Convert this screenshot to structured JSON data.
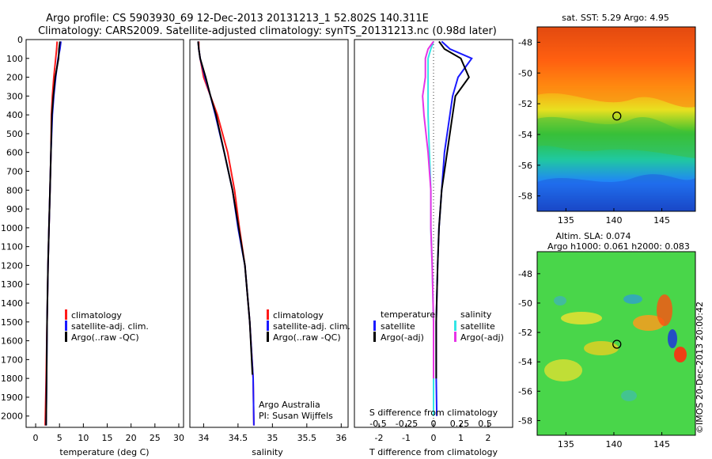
{
  "header": {
    "title_line1": "Argo profile: CS 5903930_69 12-Dec-2013 20131213_1 52.802S 140.311E",
    "title_line2": "Climatology: CARS2009. Satellite-adjusted climatology: synTS_20131213.nc (0.98d later)"
  },
  "colors": {
    "climatology": "#ff1a1a",
    "satellite": "#1a1aff",
    "argo": "#000000",
    "sat_salinity": "#33e6e6",
    "argo_salinity_diff": "#e633e6"
  },
  "depth_axis": {
    "ticks": [
      0,
      100,
      200,
      300,
      400,
      500,
      600,
      700,
      800,
      900,
      1000,
      1100,
      1200,
      1300,
      1400,
      1500,
      1600,
      1700,
      1800,
      1900,
      2000
    ],
    "lim": [
      0,
      2060
    ]
  },
  "temperature_panel": {
    "xlabel": "temperature (deg C)",
    "xticks": [
      0,
      5,
      10,
      15,
      20,
      25,
      30
    ],
    "xlim": [
      -2,
      31
    ],
    "legend": [
      "climatology",
      "satellite-adj. clim.",
      "Argo(..raw -QC)"
    ]
  },
  "salinity_panel": {
    "xlabel": "salinity",
    "xticks": [
      "34",
      "34.5",
      "35",
      "35.5",
      "36"
    ],
    "xtick_values": [
      34,
      34.5,
      35,
      35.5,
      36
    ],
    "xlim": [
      33.8,
      36.1
    ],
    "legend": [
      "climatology",
      "satellite-adj. clim.",
      "Argo(..raw -QC)"
    ],
    "credit_line1": "Argo Australia",
    "credit_line2": "PI: Susan Wijffels"
  },
  "difference_panel": {
    "xlabel": "T difference from climatology",
    "toplabel": "S difference from climatology",
    "t_ticks": [
      "-2",
      "-1",
      "0",
      "1",
      "2"
    ],
    "t_tick_values": [
      -2,
      -1,
      0,
      1,
      2
    ],
    "t_lim": [
      -2.9,
      2.9
    ],
    "s_ticks": [
      "-0.5",
      "-0.25",
      "0",
      "0.25",
      "0.5"
    ],
    "legend_temp_title": "temperature",
    "legend_temp": [
      "satellite",
      "Argo(-adj)"
    ],
    "legend_sal_title": "salinity",
    "legend_sal": [
      "satellite",
      "Argo(-adj)"
    ]
  },
  "sst_map": {
    "title": "sat. SST: 5.29 Argo: 4.95",
    "yticks": [
      "-48",
      "-50",
      "-52",
      "-54",
      "-56",
      "-58"
    ],
    "ytick_values": [
      -48,
      -50,
      -52,
      -54,
      -56,
      -58
    ],
    "xticks": [
      "135",
      "140",
      "145"
    ],
    "xtick_values": [
      135,
      140,
      145
    ],
    "lon_range": [
      132,
      148.5
    ],
    "lat_range": [
      -47,
      -59
    ],
    "float_lon": 140.311,
    "float_lat": -52.802
  },
  "sla_map": {
    "title_line1": "Altim. SLA: 0.074",
    "title_line2": "Argo h1000: 0.061 h2000: 0.083",
    "yticks": [
      "-48",
      "-50",
      "-52",
      "-54",
      "-56",
      "-58"
    ],
    "ytick_values": [
      -48,
      -50,
      -52,
      -54,
      -56,
      -58
    ],
    "xticks": [
      "135",
      "140",
      "145"
    ],
    "xtick_values": [
      135,
      140,
      145
    ],
    "lon_range": [
      132,
      148.5
    ],
    "lat_range": [
      -46.5,
      -59
    ],
    "float_lon": 140.311,
    "float_lat": -52.802,
    "stamp": "©IMOS 20-Dec-2013 20:00:42"
  },
  "chart_data": [
    {
      "type": "line",
      "xlabel": "temperature (deg C)",
      "ylabel": "depth",
      "ylim": [
        0,
        2060
      ],
      "xlim": [
        -2,
        31
      ],
      "series": [
        {
          "name": "climatology",
          "x": [
            4.5,
            4.4,
            4.2,
            3.8,
            3.5,
            3.3,
            3.2,
            3.0,
            2.8,
            2.6,
            2.4,
            2.2,
            2.0
          ],
          "y": [
            10,
            50,
            100,
            200,
            300,
            400,
            600,
            800,
            1000,
            1200,
            1500,
            1800,
            2050
          ]
        },
        {
          "name": "satellite-adj. clim.",
          "x": [
            5.3,
            5.1,
            4.7,
            4.2,
            3.8,
            3.5,
            3.2,
            3.0,
            2.8,
            2.6,
            2.4,
            2.3,
            2.2
          ],
          "y": [
            10,
            50,
            100,
            200,
            300,
            400,
            600,
            800,
            1000,
            1200,
            1500,
            1800,
            2050
          ]
        },
        {
          "name": "Argo(..raw -QC)",
          "x": [
            5.1,
            4.9,
            4.8,
            4.1,
            3.7,
            3.4,
            3.2,
            3.0,
            2.8,
            2.6,
            2.4,
            2.3,
            2.2
          ],
          "y": [
            10,
            50,
            100,
            200,
            300,
            400,
            600,
            800,
            1000,
            1200,
            1500,
            1800,
            2050
          ]
        }
      ]
    },
    {
      "type": "line",
      "xlabel": "salinity",
      "ylabel": "depth",
      "ylim": [
        0,
        2060
      ],
      "xlim": [
        33.8,
        36.1
      ],
      "series": [
        {
          "name": "climatology",
          "x": [
            33.93,
            33.93,
            33.95,
            34.0,
            34.1,
            34.2,
            34.35,
            34.45,
            34.52,
            34.6,
            34.67,
            34.72,
            34.73
          ],
          "y": [
            10,
            50,
            100,
            200,
            300,
            400,
            600,
            800,
            1000,
            1200,
            1500,
            1800,
            2050
          ]
        },
        {
          "name": "satellite-adj. clim.",
          "x": [
            33.92,
            33.93,
            33.95,
            34.02,
            34.1,
            34.17,
            34.3,
            34.42,
            34.5,
            34.6,
            34.67,
            34.72,
            34.73
          ],
          "y": [
            10,
            50,
            100,
            200,
            300,
            400,
            600,
            800,
            1000,
            1200,
            1500,
            1800,
            2050
          ]
        },
        {
          "name": "Argo(..raw -QC)",
          "x": [
            33.92,
            33.93,
            33.95,
            34.03,
            34.1,
            34.18,
            34.3,
            34.42,
            34.51,
            34.6,
            34.67,
            34.71
          ],
          "y": [
            10,
            50,
            100,
            200,
            300,
            400,
            600,
            800,
            1000,
            1200,
            1500,
            1780
          ]
        }
      ]
    },
    {
      "type": "line",
      "xlabel": "T difference from climatology",
      "ylabel": "depth",
      "ylim": [
        0,
        2060
      ],
      "xlim": [
        -2.9,
        2.9
      ],
      "series": [
        {
          "name": "temperature satellite",
          "x": [
            0.3,
            0.6,
            1.4,
            0.9,
            0.7,
            0.6,
            0.4,
            0.3,
            0.2,
            0.15,
            0.1,
            0.1,
            0.12
          ],
          "y": [
            10,
            50,
            100,
            200,
            300,
            400,
            600,
            800,
            1000,
            1200,
            1500,
            1800,
            2000
          ]
        },
        {
          "name": "temperature Argo(-adj)",
          "x": [
            0.2,
            0.4,
            1.0,
            1.3,
            0.8,
            0.7,
            0.5,
            0.3,
            0.2,
            0.15,
            0.1,
            0.1
          ],
          "y": [
            10,
            50,
            100,
            200,
            300,
            400,
            600,
            800,
            1000,
            1200,
            1500,
            1800
          ]
        },
        {
          "name": "salinity satellite",
          "x": [
            0.0,
            -0.1,
            -0.2,
            -0.2,
            -0.2,
            -0.2,
            -0.15,
            -0.1,
            -0.1,
            -0.05,
            0.0,
            0.0,
            0.0
          ],
          "y": [
            10,
            50,
            100,
            200,
            300,
            400,
            600,
            800,
            1000,
            1200,
            1500,
            1800,
            2000
          ]
        },
        {
          "name": "salinity Argo(-adj)",
          "x": [
            0.0,
            -0.2,
            -0.3,
            -0.3,
            -0.4,
            -0.35,
            -0.2,
            -0.1,
            -0.1,
            -0.05,
            0.0,
            0.0
          ],
          "y": [
            10,
            50,
            100,
            200,
            300,
            400,
            600,
            800,
            1000,
            1200,
            1500,
            1800
          ]
        }
      ]
    }
  ]
}
